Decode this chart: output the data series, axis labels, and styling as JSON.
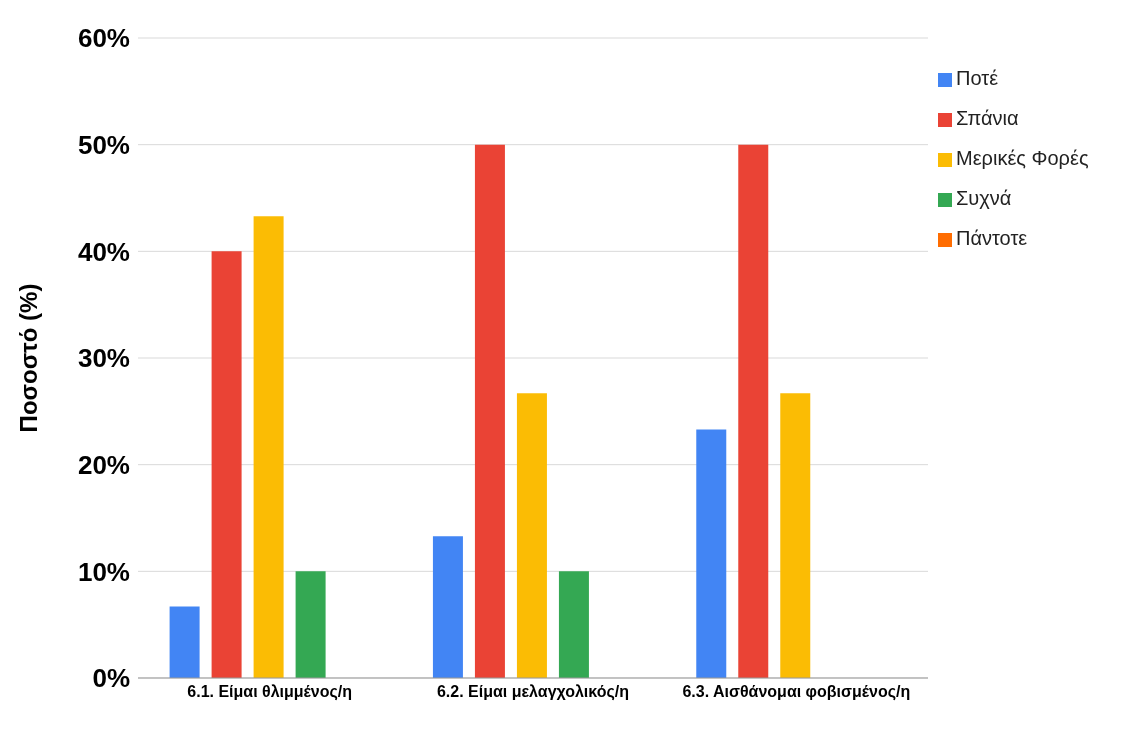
{
  "chart_data": {
    "type": "bar",
    "ylabel": "Ποσοστό (%)",
    "categories": [
      "6.1. Είμαι θλιμμένος/η",
      "6.2. Είμαι μελαγχολικός/η",
      "6.3. Αισθάνομαι φοβισμένος/η"
    ],
    "series": [
      {
        "name": "Ποτέ",
        "color": "#4285f4",
        "values": [
          6.7,
          13.3,
          23.3
        ]
      },
      {
        "name": "Σπάνια",
        "color": "#ea4335",
        "values": [
          40,
          50,
          50
        ]
      },
      {
        "name": "Μερικές Φορές",
        "color": "#fbbc04",
        "values": [
          43.3,
          26.7,
          26.7
        ]
      },
      {
        "name": "Συχνά",
        "color": "#34a853",
        "values": [
          10,
          10,
          0
        ]
      },
      {
        "name": "Πάντοτε",
        "color": "#ff6d01",
        "values": [
          0,
          0,
          0
        ]
      }
    ],
    "ylim": [
      0,
      60
    ],
    "yticks": [
      {
        "value": 0,
        "label": "0%"
      },
      {
        "value": 10,
        "label": "10%"
      },
      {
        "value": 20,
        "label": "20%"
      },
      {
        "value": 30,
        "label": "30%"
      },
      {
        "value": 40,
        "label": "40%"
      },
      {
        "value": 50,
        "label": "50%"
      },
      {
        "value": 60,
        "label": "60%"
      }
    ],
    "grid": "y",
    "legend": "top right"
  }
}
